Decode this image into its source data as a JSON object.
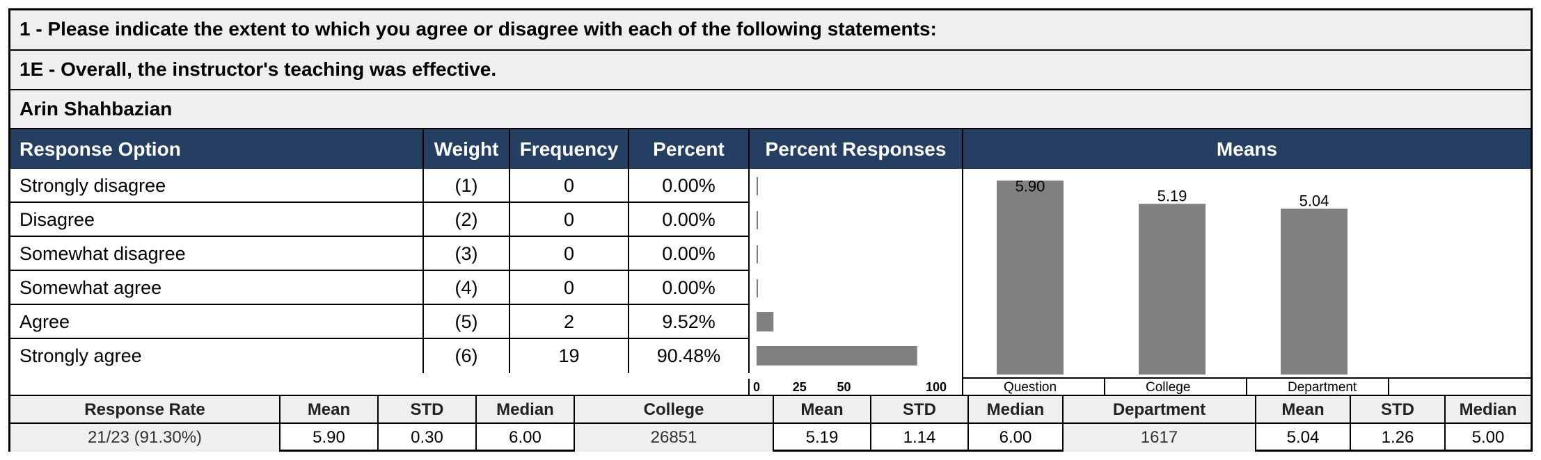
{
  "question": "1 - Please indicate the extent to which you agree or disagree with each of the following statements:",
  "subquestion": "1E - Overall, the instructor's teaching was effective.",
  "instructor": "Arin Shahbazian",
  "headers": {
    "response_option": "Response Option",
    "weight": "Weight",
    "frequency": "Frequency",
    "percent": "Percent",
    "percent_responses": "Percent Responses",
    "means": "Means"
  },
  "rows": [
    {
      "option": "Strongly disagree",
      "weight": "(1)",
      "frequency": "0",
      "percent": "0.00%"
    },
    {
      "option": "Disagree",
      "weight": "(2)",
      "frequency": "0",
      "percent": "0.00%"
    },
    {
      "option": "Somewhat disagree",
      "weight": "(3)",
      "frequency": "0",
      "percent": "0.00%"
    },
    {
      "option": "Somewhat agree",
      "weight": "(4)",
      "frequency": "0",
      "percent": "0.00%"
    },
    {
      "option": "Agree",
      "weight": "(5)",
      "frequency": "2",
      "percent": "9.52%"
    },
    {
      "option": "Strongly agree",
      "weight": "(6)",
      "frequency": "19",
      "percent": "90.48%"
    }
  ],
  "chart_data": [
    {
      "type": "bar",
      "orientation": "horizontal",
      "categories": [
        "Strongly disagree",
        "Disagree",
        "Somewhat disagree",
        "Somewhat agree",
        "Agree",
        "Strongly agree"
      ],
      "values": [
        0,
        0,
        0,
        0,
        9.52,
        90.48
      ],
      "xlim": [
        0,
        100
      ],
      "xticks": [
        "0",
        "25",
        "50",
        "100"
      ],
      "bar_color": "#808080"
    },
    {
      "type": "bar",
      "orientation": "vertical",
      "categories": [
        "Question",
        "College",
        "Department"
      ],
      "values": [
        5.9,
        5.19,
        5.04
      ],
      "labels": [
        "5.90",
        "5.19",
        "5.04"
      ],
      "ylim": [
        0,
        6
      ],
      "bar_color": "#808080"
    }
  ],
  "stats": {
    "headers": [
      "Response Rate",
      "Mean",
      "STD",
      "Median",
      "College",
      "Mean",
      "STD",
      "Median",
      "Department",
      "Mean",
      "STD",
      "Median"
    ],
    "values": [
      "21/23 (91.30%)",
      "5.90",
      "0.30",
      "6.00",
      "26851",
      "5.19",
      "1.14",
      "6.00",
      "1617",
      "5.04",
      "1.26",
      "5.00"
    ]
  },
  "colors": {
    "header_bg": "#243f61",
    "band_bg": "#efefef",
    "bar": "#808080"
  }
}
